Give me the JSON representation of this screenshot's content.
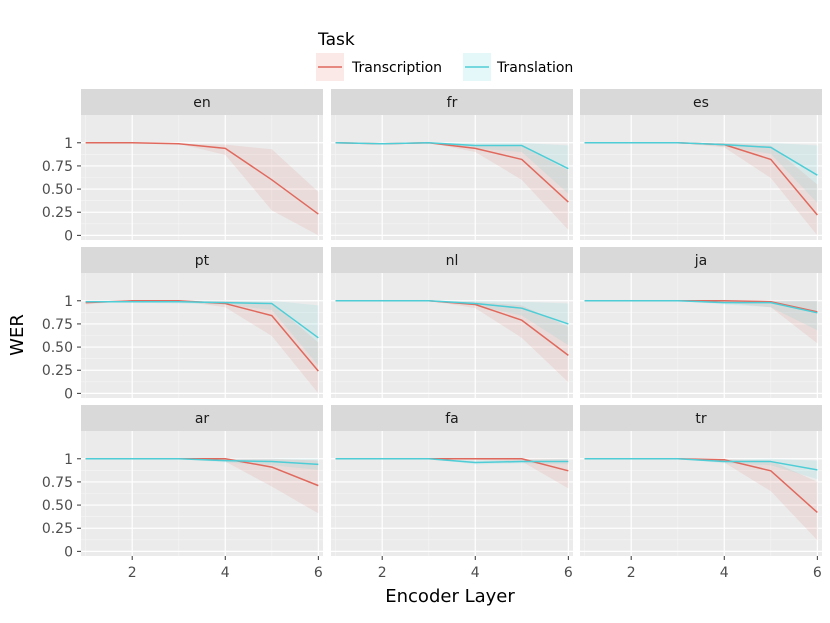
{
  "chart_data": {
    "type": "line",
    "xlabel": "Encoder Layer",
    "ylabel": "WER",
    "xlim": [
      0.9,
      6.1
    ],
    "ylim": [
      -0.05,
      1.3
    ],
    "x_ticks": [
      2,
      4,
      6
    ],
    "y_ticks": [
      0,
      0.25,
      0.5,
      0.75,
      1
    ],
    "y_tick_labels": [
      "0",
      "0.25",
      "0.50",
      "0.75",
      "1"
    ],
    "grid": true,
    "legend": {
      "title": "Task",
      "position": "top",
      "entries": [
        {
          "name": "Transcription",
          "color": "#e0695e"
        },
        {
          "name": "Translation",
          "color": "#4ecdd6"
        }
      ]
    },
    "x": [
      1,
      2,
      3,
      4,
      5,
      6
    ],
    "panels": [
      {
        "label": "en",
        "series": [
          {
            "name": "Transcription",
            "values": [
              1.0,
              1.0,
              0.99,
              0.94,
              0.6,
              0.23
            ],
            "lower": [
              1.0,
              1.0,
              0.99,
              0.87,
              0.27,
              0.0
            ],
            "upper": [
              1.0,
              1.0,
              0.99,
              0.98,
              0.93,
              0.47
            ]
          }
        ]
      },
      {
        "label": "fr",
        "series": [
          {
            "name": "Transcription",
            "values": [
              1.0,
              0.99,
              1.0,
              0.94,
              0.82,
              0.36
            ],
            "lower": [
              1.0,
              0.99,
              1.0,
              0.9,
              0.6,
              0.06
            ],
            "upper": [
              1.0,
              0.99,
              1.0,
              0.97,
              0.96,
              0.7
            ]
          },
          {
            "name": "Translation",
            "values": [
              1.0,
              0.99,
              1.0,
              0.97,
              0.97,
              0.72
            ],
            "lower": [
              1.0,
              0.99,
              1.0,
              0.94,
              0.9,
              0.45
            ],
            "upper": [
              1.0,
              1.0,
              1.0,
              1.0,
              1.0,
              0.97
            ]
          }
        ]
      },
      {
        "label": "es",
        "series": [
          {
            "name": "Transcription",
            "values": [
              1.0,
              1.0,
              1.0,
              0.98,
              0.82,
              0.22
            ],
            "lower": [
              1.0,
              1.0,
              1.0,
              0.95,
              0.62,
              0.0
            ],
            "upper": [
              1.0,
              1.0,
              1.0,
              1.0,
              0.97,
              0.55
            ]
          },
          {
            "name": "Translation",
            "values": [
              1.0,
              1.0,
              1.0,
              0.98,
              0.95,
              0.65
            ],
            "lower": [
              1.0,
              1.0,
              1.0,
              0.96,
              0.88,
              0.35
            ],
            "upper": [
              1.0,
              1.0,
              1.0,
              1.0,
              1.0,
              0.97
            ]
          }
        ]
      },
      {
        "label": "pt",
        "series": [
          {
            "name": "Transcription",
            "values": [
              0.98,
              1.0,
              1.0,
              0.97,
              0.84,
              0.24
            ],
            "lower": [
              0.96,
              1.0,
              1.0,
              0.93,
              0.62,
              0.0
            ],
            "upper": [
              1.0,
              1.0,
              1.0,
              1.0,
              0.98,
              0.55
            ]
          },
          {
            "name": "Translation",
            "values": [
              0.99,
              0.99,
              0.99,
              0.98,
              0.97,
              0.6
            ],
            "lower": [
              0.98,
              0.98,
              0.97,
              0.96,
              0.9,
              0.3
            ],
            "upper": [
              1.0,
              1.0,
              1.0,
              1.0,
              1.0,
              0.95
            ]
          }
        ]
      },
      {
        "label": "nl",
        "series": [
          {
            "name": "Transcription",
            "values": [
              1.0,
              1.0,
              1.0,
              0.96,
              0.79,
              0.41
            ],
            "lower": [
              1.0,
              1.0,
              1.0,
              0.92,
              0.6,
              0.12
            ],
            "upper": [
              1.0,
              1.0,
              1.0,
              0.99,
              0.95,
              0.72
            ]
          },
          {
            "name": "Translation",
            "values": [
              1.0,
              1.0,
              1.0,
              0.97,
              0.92,
              0.75
            ],
            "lower": [
              1.0,
              1.0,
              1.0,
              0.95,
              0.84,
              0.52
            ],
            "upper": [
              1.0,
              1.0,
              1.0,
              1.0,
              0.99,
              0.97
            ]
          }
        ]
      },
      {
        "label": "ja",
        "series": [
          {
            "name": "Transcription",
            "values": [
              1.0,
              1.0,
              1.0,
              1.0,
              0.99,
              0.88
            ],
            "lower": [
              1.0,
              1.0,
              1.0,
              0.98,
              0.93,
              0.54
            ],
            "upper": [
              1.0,
              1.0,
              1.0,
              1.0,
              1.0,
              1.0
            ]
          },
          {
            "name": "Translation",
            "values": [
              1.0,
              1.0,
              1.0,
              0.98,
              0.98,
              0.87
            ],
            "lower": [
              1.0,
              1.0,
              1.0,
              0.96,
              0.93,
              0.68
            ],
            "upper": [
              1.0,
              1.0,
              1.0,
              1.0,
              1.0,
              1.0
            ]
          }
        ]
      },
      {
        "label": "ar",
        "series": [
          {
            "name": "Transcription",
            "values": [
              1.0,
              1.0,
              1.0,
              1.0,
              0.91,
              0.71
            ],
            "lower": [
              1.0,
              1.0,
              1.0,
              0.97,
              0.7,
              0.41
            ],
            "upper": [
              1.0,
              1.0,
              1.0,
              1.0,
              1.0,
              0.98
            ]
          },
          {
            "name": "Translation",
            "values": [
              1.0,
              1.0,
              1.0,
              0.98,
              0.97,
              0.94
            ],
            "lower": [
              1.0,
              1.0,
              1.0,
              0.96,
              0.93,
              0.88
            ],
            "upper": [
              1.0,
              1.0,
              1.0,
              1.0,
              1.0,
              1.0
            ]
          }
        ]
      },
      {
        "label": "fa",
        "series": [
          {
            "name": "Transcription",
            "values": [
              1.0,
              1.0,
              1.0,
              1.0,
              1.0,
              0.87
            ],
            "lower": [
              1.0,
              1.0,
              1.0,
              0.99,
              0.97,
              0.68
            ],
            "upper": [
              1.0,
              1.0,
              1.0,
              1.0,
              1.0,
              1.0
            ]
          },
          {
            "name": "Translation",
            "values": [
              1.0,
              1.0,
              1.0,
              0.96,
              0.97,
              0.97
            ],
            "lower": [
              1.0,
              1.0,
              1.0,
              0.94,
              0.95,
              0.94
            ],
            "upper": [
              1.0,
              1.0,
              1.0,
              0.98,
              0.99,
              1.0
            ]
          }
        ]
      },
      {
        "label": "tr",
        "series": [
          {
            "name": "Transcription",
            "values": [
              1.0,
              1.0,
              1.0,
              0.99,
              0.87,
              0.42
            ],
            "lower": [
              1.0,
              1.0,
              1.0,
              0.96,
              0.65,
              0.12
            ],
            "upper": [
              1.0,
              1.0,
              1.0,
              1.0,
              0.98,
              0.75
            ]
          },
          {
            "name": "Translation",
            "values": [
              1.0,
              1.0,
              1.0,
              0.97,
              0.97,
              0.88
            ],
            "lower": [
              1.0,
              1.0,
              1.0,
              0.95,
              0.93,
              0.78
            ],
            "upper": [
              1.0,
              1.0,
              1.0,
              0.99,
              1.0,
              0.98
            ]
          }
        ]
      }
    ]
  }
}
